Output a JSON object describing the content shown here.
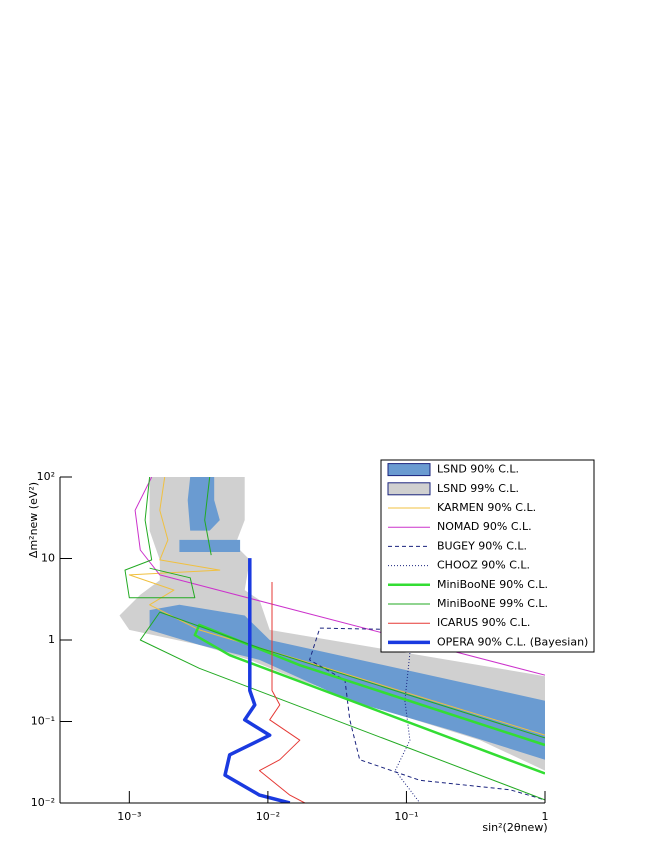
{
  "chart_data": {
    "type": "contour",
    "x_label": "sin²(2θnew)",
    "y_label": "Δm²new (eV²)",
    "xlog": true,
    "ylog": true,
    "xlim": [
      0.000316,
      1
    ],
    "ylim": [
      0.01,
      100
    ],
    "xticks": [
      {
        "value": 0.001,
        "label": "10⁻³"
      },
      {
        "value": 0.01,
        "label": "10⁻²"
      },
      {
        "value": 0.1,
        "label": "10⁻¹"
      },
      1
    ],
    "yticks": [
      {
        "value": 0.01,
        "label": "10⁻²"
      },
      {
        "value": 0.1,
        "label": "10⁻¹"
      },
      1,
      10,
      {
        "value": 100,
        "label": "10²"
      }
    ],
    "legend": "top-right",
    "series": [
      {
        "name": "LSND 90% C.L.",
        "color": "#6a9bd1",
        "fill": true,
        "x": [
          0.00275,
          0.0041,
          0.0041,
          0.0045,
          0.0038,
          0.00275,
          0.00264,
          null,
          0.0023,
          0.0063,
          0.0063,
          0.0023,
          null,
          0.0014,
          0.0023,
          0.0068,
          0.0103,
          1,
          1,
          0.205,
          0.039,
          0.0087,
          0.0032,
          0.0014
        ],
        "y": [
          100,
          100,
          52,
          29.6,
          22,
          22,
          52,
          null,
          16.9,
          16.9,
          12,
          12,
          null,
          2.33,
          2.7,
          2.0,
          1,
          0.18,
          0.034,
          0.079,
          0.18,
          0.57,
          0.87,
          1.33
        ]
      },
      {
        "name": "LSND 99% C.L.",
        "color": "#d0d0d0",
        "fill": true,
        "x": [
          0.0014,
          0.0068,
          0.0068,
          0.0058,
          0.0074,
          0.0068,
          0.0087,
          0.0103,
          1,
          1,
          0.34,
          0.089,
          0.017,
          0.0074,
          0.0032,
          0.001,
          0.00085,
          0.0012,
          0.00166,
          0.00166,
          0.0014
        ],
        "y": [
          100,
          100,
          29.6,
          14.6,
          9.6,
          4.1,
          3.1,
          1.33,
          0.36,
          0.025,
          0.059,
          0.12,
          0.32,
          0.57,
          0.87,
          1.33,
          2.0,
          3.6,
          5.4,
          9.6,
          22
        ]
      },
      {
        "name": "KARMEN 90% C.L.",
        "color": "#f0c040",
        "dash": "solid",
        "line_width": 1,
        "x": [
          0.0018,
          0.00166,
          0.0019,
          0.00166,
          0.0045,
          0.001,
          0.0021,
          0.0014,
          0.0032,
          0.017,
          1
        ],
        "y": [
          100,
          39,
          16.9,
          9.6,
          7.2,
          6.3,
          4.1,
          2.7,
          1.33,
          0.57,
          0.068
        ]
      },
      {
        "name": "NOMAD 90% C.L.",
        "color": "#cc33cc",
        "dash": "solid",
        "line_width": 1,
        "x": [
          0.00145,
          0.0011,
          0.0012,
          0.00166,
          1
        ],
        "y": [
          100,
          39,
          12.7,
          6.3,
          0.37
        ]
      },
      {
        "name": "BUGEY 90% C.L.",
        "color": "#1a237e",
        "dash": "dashed",
        "line_width": 1,
        "x": [
          0.115,
          0.0237,
          0.02,
          0.036,
          0.039,
          0.046,
          0.125,
          0.56,
          1
        ],
        "y": [
          1.33,
          1.4,
          0.57,
          0.32,
          0.105,
          0.034,
          0.019,
          0.0145,
          0.0109
        ]
      },
      {
        "name": "CHOOZ 90% C.L.",
        "color": "#1a237e",
        "dash": "dotted",
        "line_width": 1,
        "x": [
          0.106,
          0.0975,
          0.106,
          0.083,
          0.106,
          0.125
        ],
        "y": [
          0.69,
          0.18,
          0.059,
          0.025,
          0.0145,
          0.01
        ]
      },
      {
        "name": "MiniBooNE 90% C.L.",
        "color": "#33dd33",
        "dash": "solid",
        "line_width": 2.5,
        "x": [
          1,
          0.017,
          0.0032,
          0.00297,
          0.0053,
          1
        ],
        "y": [
          0.0515,
          0.49,
          1.53,
          1.15,
          0.65,
          0.023
        ]
      },
      {
        "name": "MiniBooNE 99% C.L.",
        "color": "#22aa22",
        "dash": "solid",
        "line_width": 1,
        "x": [
          0.0014,
          0.0013,
          0.00145,
          0.00093,
          0.001,
          0.00297,
          0.00275,
          0.0014,
          null,
          0.0038,
          0.0035,
          0.0039,
          null,
          1,
          0.0087,
          0.00166,
          0.0012,
          0.0032,
          1
        ],
        "y": [
          100,
          29.6,
          9.6,
          7.2,
          3.3,
          3.3,
          5.8,
          7.6,
          null,
          100,
          29.6,
          11,
          null,
          0.063,
          0.8,
          2.2,
          1,
          0.45,
          0.0109
        ]
      },
      {
        "name": "ICARUS 90% C.L.",
        "color": "#e53935",
        "dash": "solid",
        "line_width": 1,
        "x": [
          0.0107,
          0.0107,
          0.0122,
          0.0103,
          0.017,
          0.0122,
          0.0087,
          0.0144,
          0.0185
        ],
        "y": [
          5.15,
          0.24,
          0.16,
          0.105,
          0.059,
          0.034,
          0.025,
          0.0125,
          0.01
        ]
      },
      {
        "name": "OPERA 90% C.L. (Bayesian)",
        "color": "#1a3ae0",
        "dash": "solid",
        "line_width": 3.5,
        "x": [
          0.0074,
          0.0074,
          0.00805,
          0.0068,
          0.0103,
          0.0053,
          0.0049,
          0.0087,
          0.0144
        ],
        "y": [
          10.1,
          0.24,
          0.16,
          0.105,
          0.068,
          0.039,
          0.022,
          0.0125,
          0.01
        ]
      }
    ]
  }
}
